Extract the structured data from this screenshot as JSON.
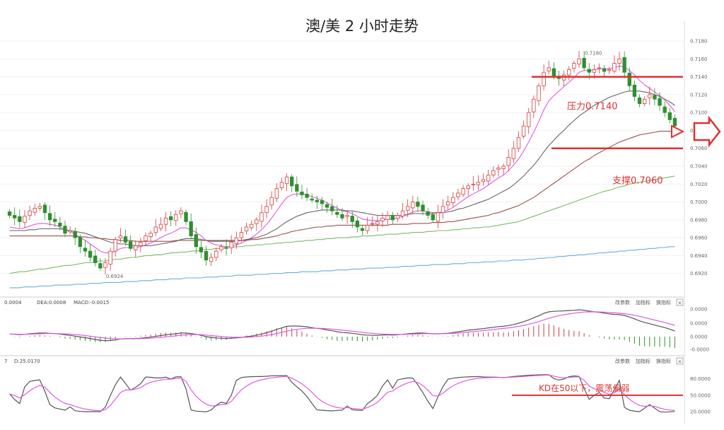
{
  "chart_data": {
    "type": "candlestick",
    "title": "澳/美 2 小时走势",
    "ylim": [
      0.69,
      0.718
    ],
    "y_ticks": [
      "0.7180",
      "0.7160",
      "0.7140",
      "0.7120",
      "0.7100",
      "0.7080",
      "0.7060",
      "0.7040",
      "0.7020",
      "0.7000",
      "0.6980",
      "0.6960",
      "0.6940",
      "0.6920"
    ],
    "high_label": "0.7180",
    "low_label": "0.6924",
    "resistance": {
      "label": "压力0.7140",
      "value": 0.714
    },
    "support": {
      "label": "支撑0.7060",
      "value": 0.706
    },
    "macd_panel": {
      "legend": [
        "0.0004",
        "DEA:0.0008",
        "MACD:-0.0015"
      ],
      "buttons": [
        "改参数",
        "加指标",
        "换指标"
      ],
      "close_glyph": "×",
      "y_ticks": [
        "0.0000",
        "0.0000",
        "0.0000",
        "-0.0000"
      ],
      "dif_color": "#555555",
      "dea_color": "#e05ae0"
    },
    "kd_panel": {
      "legend": [
        "7",
        "D:25.0170"
      ],
      "buttons": [
        "改参数",
        "加指标",
        "换指标"
      ],
      "close_glyph": "×",
      "y_ticks": [
        "80.0000",
        "50.0000",
        "20.0000"
      ],
      "annotation": "KD在50以下，震荡偏弱",
      "level": 50,
      "k_color": "#555555",
      "d_color": "#e05ae0"
    },
    "colors": {
      "up": "#d63a3a",
      "down": "#2f8f2f",
      "annotation": "#e03030",
      "ma_fast": "#e05ae0",
      "ma_mid": "#666666",
      "ma_slow": "#a05050",
      "ma_green": "#7cba6a",
      "ma_blue": "#6aaee0",
      "ma_orange": "#f5c48a"
    },
    "series": [
      {
        "values": [
          0.6985,
          0.6982,
          0.6978,
          0.6984,
          0.699,
          0.6993,
          0.6995,
          0.6988,
          0.698,
          0.6978,
          0.6973,
          0.6965,
          0.6968,
          0.696,
          0.695,
          0.6945,
          0.6938,
          0.6932,
          0.6926,
          0.6932,
          0.6945,
          0.6958,
          0.6962,
          0.6955,
          0.6948,
          0.6951,
          0.6955,
          0.6962,
          0.6965,
          0.6972,
          0.6975,
          0.6982,
          0.698,
          0.6986,
          0.699,
          0.6978,
          0.6962,
          0.695,
          0.6944,
          0.6935,
          0.6938,
          0.6945,
          0.695,
          0.6948,
          0.6955,
          0.696,
          0.6966,
          0.6972,
          0.6975,
          0.698,
          0.6988,
          0.6995,
          0.7005,
          0.7015,
          0.7022,
          0.7028,
          0.7018,
          0.7012,
          0.7008,
          0.7005,
          0.7002,
          0.7,
          0.6998,
          0.6994,
          0.699,
          0.6986,
          0.6982,
          0.6985,
          0.6978,
          0.6972,
          0.6968,
          0.6974,
          0.6976,
          0.6978,
          0.6982,
          0.6985,
          0.698,
          0.6985,
          0.699,
          0.6995,
          0.7,
          0.6995,
          0.699,
          0.6985,
          0.698,
          0.6988,
          0.6995,
          0.7,
          0.7005,
          0.701,
          0.7015,
          0.7018,
          0.702,
          0.7022,
          0.7025,
          0.703,
          0.7035,
          0.7038,
          0.704,
          0.705,
          0.706,
          0.7072,
          0.7085,
          0.71,
          0.7115,
          0.713,
          0.7145,
          0.715,
          0.714,
          0.7138,
          0.7142,
          0.7148,
          0.7155,
          0.716,
          0.715,
          0.7145,
          0.7148,
          0.715,
          0.7146,
          0.7148,
          0.7155,
          0.716,
          0.7145,
          0.713,
          0.7118,
          0.711,
          0.7115,
          0.712,
          0.7115,
          0.7108,
          0.71,
          0.7092,
          0.7085
        ]
      },
      {
        "values": [
          0.6972,
          0.6971,
          0.697,
          0.6971,
          0.6973,
          0.6975,
          0.6976,
          0.6976,
          0.6975,
          0.6974,
          0.6972,
          0.6969,
          0.6967,
          0.6964,
          0.696,
          0.6957,
          0.6953,
          0.6949,
          0.6945,
          0.6943,
          0.6943,
          0.6945,
          0.6948,
          0.6949,
          0.6949,
          0.6949,
          0.695,
          0.6952,
          0.6954,
          0.6957,
          0.696,
          0.6963,
          0.6965,
          0.6968,
          0.6971,
          0.6971,
          0.6969,
          0.6966,
          0.6962,
          0.6957,
          0.6954,
          0.6952,
          0.6951,
          0.695,
          0.6951,
          0.6952,
          0.6954,
          0.6957,
          0.696,
          0.6964,
          0.6969,
          0.6975,
          0.6982,
          0.699,
          0.6998,
          0.7005,
          0.7008,
          0.7009,
          0.7009,
          0.7008,
          0.7006,
          0.7004,
          0.7002,
          0.6999,
          0.6996,
          0.6993,
          0.699,
          0.6989,
          0.6987,
          0.6984,
          0.6981,
          0.698,
          0.6979,
          0.6979,
          0.698,
          0.6981,
          0.6981,
          0.6982,
          0.6984,
          0.6986,
          0.6989,
          0.699,
          0.699,
          0.6989,
          0.6988,
          0.6988,
          0.6989,
          0.6991,
          0.6994,
          0.6998,
          0.7002,
          0.7006,
          0.7009,
          0.7012,
          0.7015,
          0.7019,
          0.7023,
          0.7027,
          0.703,
          0.7035,
          0.7041,
          0.7048,
          0.7057,
          0.7067,
          0.7078,
          0.709,
          0.7103,
          0.7113,
          0.7119,
          0.7124,
          0.7129,
          0.7134,
          0.7139,
          0.7145,
          0.7147,
          0.7147,
          0.7148,
          0.7149,
          0.7149,
          0.7149,
          0.715,
          0.7152,
          0.7151,
          0.7147,
          0.7142,
          0.7136,
          0.7131,
          0.7127,
          0.7123,
          0.7119,
          0.7114,
          0.7108,
          0.7101
        ]
      },
      {
        "values": [
          0.6968,
          0.6968,
          0.6968,
          0.6968,
          0.6969,
          0.6969,
          0.697,
          0.697,
          0.697,
          0.697,
          0.697,
          0.6969,
          0.6968,
          0.6967,
          0.6966,
          0.6965,
          0.6963,
          0.6961,
          0.6959,
          0.6957,
          0.6955,
          0.6954,
          0.6953,
          0.6953,
          0.6952,
          0.6951,
          0.6951,
          0.6951,
          0.6951,
          0.6952,
          0.6953,
          0.6954,
          0.6955,
          0.6956,
          0.6958,
          0.6959,
          0.6959,
          0.6959,
          0.6958,
          0.6957,
          0.6956,
          0.6956,
          0.6956,
          0.6956,
          0.6956,
          0.6956,
          0.6957,
          0.6958,
          0.6959,
          0.696,
          0.6962,
          0.6964,
          0.6967,
          0.697,
          0.6974,
          0.6978,
          0.6981,
          0.6984,
          0.6986,
          0.6988,
          0.6989,
          0.699,
          0.6991,
          0.6991,
          0.6991,
          0.6991,
          0.6991,
          0.699,
          0.699,
          0.6989,
          0.6988,
          0.6987,
          0.6986,
          0.6985,
          0.6985,
          0.6985,
          0.6985,
          0.6985,
          0.6985,
          0.6986,
          0.6987,
          0.6987,
          0.6987,
          0.6987,
          0.6987,
          0.6988,
          0.6988,
          0.6989,
          0.699,
          0.6992,
          0.6993,
          0.6995,
          0.6997,
          0.6999,
          0.7001,
          0.7003,
          0.7006,
          0.7009,
          0.7012,
          0.7015,
          0.7019,
          0.7024,
          0.7029,
          0.7035,
          0.7041,
          0.7048,
          0.7056,
          0.7063,
          0.7069,
          0.7075,
          0.708,
          0.7086,
          0.7091,
          0.7096,
          0.71,
          0.7104,
          0.7108,
          0.7111,
          0.7114,
          0.7117,
          0.7119,
          0.7121,
          0.7123,
          0.7124,
          0.7124,
          0.7124,
          0.7123,
          0.7122,
          0.712,
          0.7118,
          0.7115,
          0.7112,
          0.7108
        ]
      },
      {
        "values": [
          0.6962,
          0.6962,
          0.6962,
          0.6962,
          0.6962,
          0.6962,
          0.6962,
          0.6962,
          0.6962,
          0.6962,
          0.6962,
          0.6962,
          0.6962,
          0.6962,
          0.6961,
          0.6961,
          0.696,
          0.696,
          0.6959,
          0.6959,
          0.6958,
          0.6958,
          0.6957,
          0.6957,
          0.6957,
          0.6956,
          0.6956,
          0.6956,
          0.6956,
          0.6956,
          0.6956,
          0.6956,
          0.6956,
          0.6957,
          0.6957,
          0.6957,
          0.6957,
          0.6957,
          0.6957,
          0.6957,
          0.6957,
          0.6957,
          0.6957,
          0.6957,
          0.6957,
          0.6957,
          0.6957,
          0.6957,
          0.6958,
          0.6958,
          0.6959,
          0.696,
          0.6961,
          0.6962,
          0.6964,
          0.6965,
          0.6967,
          0.6968,
          0.6969,
          0.697,
          0.6971,
          0.6972,
          0.6972,
          0.6973,
          0.6973,
          0.6974,
          0.6974,
          0.6974,
          0.6974,
          0.6974,
          0.6974,
          0.6974,
          0.6974,
          0.6974,
          0.6974,
          0.6974,
          0.6975,
          0.6975,
          0.6975,
          0.6975,
          0.6976,
          0.6976,
          0.6976,
          0.6976,
          0.6977,
          0.6977,
          0.6977,
          0.6978,
          0.6978,
          0.6979,
          0.698,
          0.6981,
          0.6982,
          0.6983,
          0.6984,
          0.6985,
          0.6987,
          0.6988,
          0.699,
          0.6992,
          0.6994,
          0.6996,
          0.6999,
          0.7002,
          0.7005,
          0.7009,
          0.7013,
          0.7017,
          0.7021,
          0.7025,
          0.7029,
          0.7033,
          0.7037,
          0.7041,
          0.7045,
          0.7048,
          0.7052,
          0.7055,
          0.7058,
          0.7061,
          0.7064,
          0.7067,
          0.7069,
          0.7071,
          0.7073,
          0.7075,
          0.7076,
          0.7077,
          0.7078,
          0.7079,
          0.7079,
          0.7079,
          0.7079
        ]
      },
      {
        "values": [
          0.692,
          0.6921,
          0.6922,
          0.6922,
          0.6923,
          0.6924,
          0.6925,
          0.6925,
          0.6926,
          0.6927,
          0.6928,
          0.6929,
          0.6929,
          0.693,
          0.6931,
          0.6932,
          0.6932,
          0.6933,
          0.6934,
          0.6934,
          0.6935,
          0.6936,
          0.6936,
          0.6937,
          0.6938,
          0.6938,
          0.6939,
          0.694,
          0.694,
          0.6941,
          0.6941,
          0.6942,
          0.6943,
          0.6943,
          0.6944,
          0.6944,
          0.6945,
          0.6945,
          0.6946,
          0.6947,
          0.6947,
          0.6948,
          0.6948,
          0.6949,
          0.6949,
          0.695,
          0.695,
          0.6951,
          0.6951,
          0.6952,
          0.6952,
          0.6953,
          0.6953,
          0.6954,
          0.6954,
          0.6955,
          0.6955,
          0.6956,
          0.6956,
          0.6957,
          0.6957,
          0.6958,
          0.6958,
          0.6959,
          0.6959,
          0.696,
          0.696,
          0.696,
          0.6961,
          0.6961,
          0.6962,
          0.6962,
          0.6962,
          0.6963,
          0.6963,
          0.6964,
          0.6964,
          0.6964,
          0.6965,
          0.6965,
          0.6966,
          0.6966,
          0.6966,
          0.6967,
          0.6967,
          0.6968,
          0.6968,
          0.6968,
          0.6969,
          0.6969,
          0.697,
          0.697,
          0.6971,
          0.6971,
          0.6972,
          0.6972,
          0.6973,
          0.6974,
          0.6975,
          0.6976,
          0.6977,
          0.6978,
          0.698,
          0.6982,
          0.6984,
          0.6986,
          0.6988,
          0.699,
          0.6992,
          0.6994,
          0.6996,
          0.6998,
          0.7,
          0.7002,
          0.7004,
          0.7006,
          0.7008,
          0.701,
          0.7012,
          0.7013,
          0.7015,
          0.7017,
          0.7018,
          0.702,
          0.7021,
          0.7022,
          0.7023,
          0.7024,
          0.7025,
          0.7026,
          0.7027,
          0.7028,
          0.7029
        ]
      },
      {
        "values": [
          0.6904,
          0.6904,
          0.6904,
          0.6905,
          0.6905,
          0.6905,
          0.6906,
          0.6906,
          0.6906,
          0.6907,
          0.6907,
          0.6907,
          0.6907,
          0.6908,
          0.6908,
          0.6908,
          0.6909,
          0.6909,
          0.6909,
          0.691,
          0.691,
          0.691,
          0.691,
          0.6911,
          0.6911,
          0.6911,
          0.6912,
          0.6912,
          0.6912,
          0.6913,
          0.6913,
          0.6913,
          0.6914,
          0.6914,
          0.6914,
          0.6915,
          0.6915,
          0.6915,
          0.6915,
          0.6916,
          0.6916,
          0.6916,
          0.6917,
          0.6917,
          0.6917,
          0.6918,
          0.6918,
          0.6918,
          0.6918,
          0.6919,
          0.6919,
          0.6919,
          0.692,
          0.692,
          0.692,
          0.6921,
          0.6921,
          0.6921,
          0.6922,
          0.6922,
          0.6922,
          0.6922,
          0.6923,
          0.6923,
          0.6923,
          0.6924,
          0.6924,
          0.6924,
          0.6925,
          0.6925,
          0.6925,
          0.6926,
          0.6926,
          0.6926,
          0.6926,
          0.6927,
          0.6927,
          0.6927,
          0.6928,
          0.6928,
          0.6928,
          0.6929,
          0.6929,
          0.6929,
          0.693,
          0.693,
          0.693,
          0.693,
          0.6931,
          0.6931,
          0.6931,
          0.6932,
          0.6932,
          0.6932,
          0.6933,
          0.6933,
          0.6933,
          0.6934,
          0.6934,
          0.6934,
          0.6935,
          0.6935,
          0.6935,
          0.6936,
          0.6936,
          0.6937,
          0.6937,
          0.6938,
          0.6938,
          0.6939,
          0.6939,
          0.694,
          0.694,
          0.6941,
          0.6941,
          0.6942,
          0.6942,
          0.6943,
          0.6943,
          0.6944,
          0.6944,
          0.6945,
          0.6945,
          0.6946,
          0.6946,
          0.6947,
          0.6947,
          0.6948,
          0.6948,
          0.6949,
          0.6949,
          0.695,
          0.695
        ]
      }
    ]
  }
}
